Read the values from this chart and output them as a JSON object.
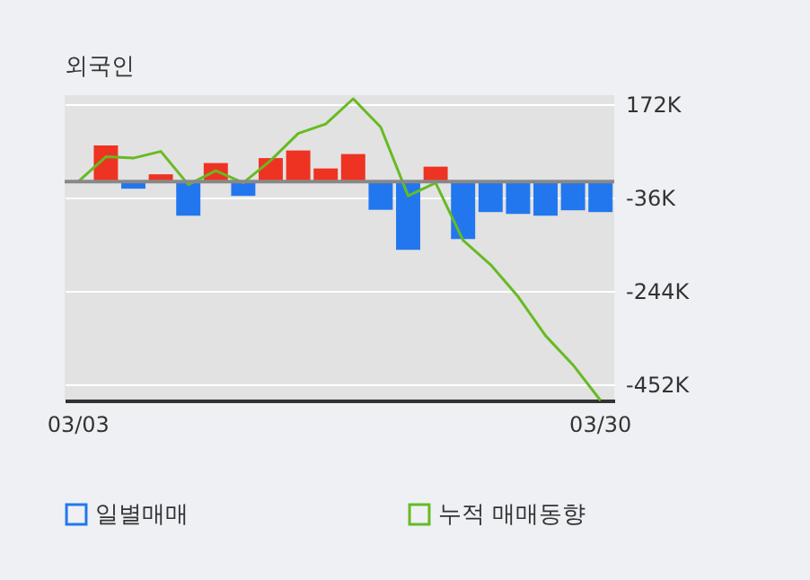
{
  "chart_data": {
    "type": "bar",
    "title": "외국인",
    "categories": [
      "03/03",
      null,
      null,
      null,
      null,
      null,
      null,
      null,
      null,
      null,
      null,
      null,
      null,
      null,
      null,
      null,
      null,
      null,
      null,
      "03/30"
    ],
    "series": [
      {
        "name": "일별매매",
        "colors": [
          "#ee3322",
          "#ee3322",
          "#2277ee",
          "#ee3322",
          "#2277ee",
          "#ee3322",
          "#2277ee",
          "#ee3322",
          "#ee3322",
          "#ee3322",
          "#ee3322",
          "#2277ee",
          "#2277ee",
          "#ee3322",
          "#2277ee",
          "#2277ee",
          "#2277ee",
          "#2277ee",
          "#2277ee",
          "#2277ee"
        ],
        "values": [
          null,
          80,
          -16,
          16,
          -76,
          41,
          -32,
          52,
          69,
          29,
          61,
          -63,
          -152,
          33,
          -128,
          -68,
          -72,
          -76,
          -64,
          -68
        ]
      },
      {
        "name": "누적 매매동향",
        "type": "line",
        "color": "#66bb22",
        "values": [
          0,
          55,
          52,
          67,
          -7,
          24,
          -3,
          47,
          107,
          128,
          184,
          121,
          -32,
          -3,
          -131,
          -185,
          -256,
          -343,
          -408,
          -487
        ]
      }
    ],
    "ylim": [
      -487,
      192
    ],
    "yticks": [
      {
        "value": 172,
        "label": "172K"
      },
      {
        "value": -36,
        "label": "-36K"
      },
      {
        "value": -244,
        "label": "-244K"
      },
      {
        "value": -452,
        "label": "-452K"
      }
    ],
    "grid": "y",
    "legend": "bottom"
  }
}
